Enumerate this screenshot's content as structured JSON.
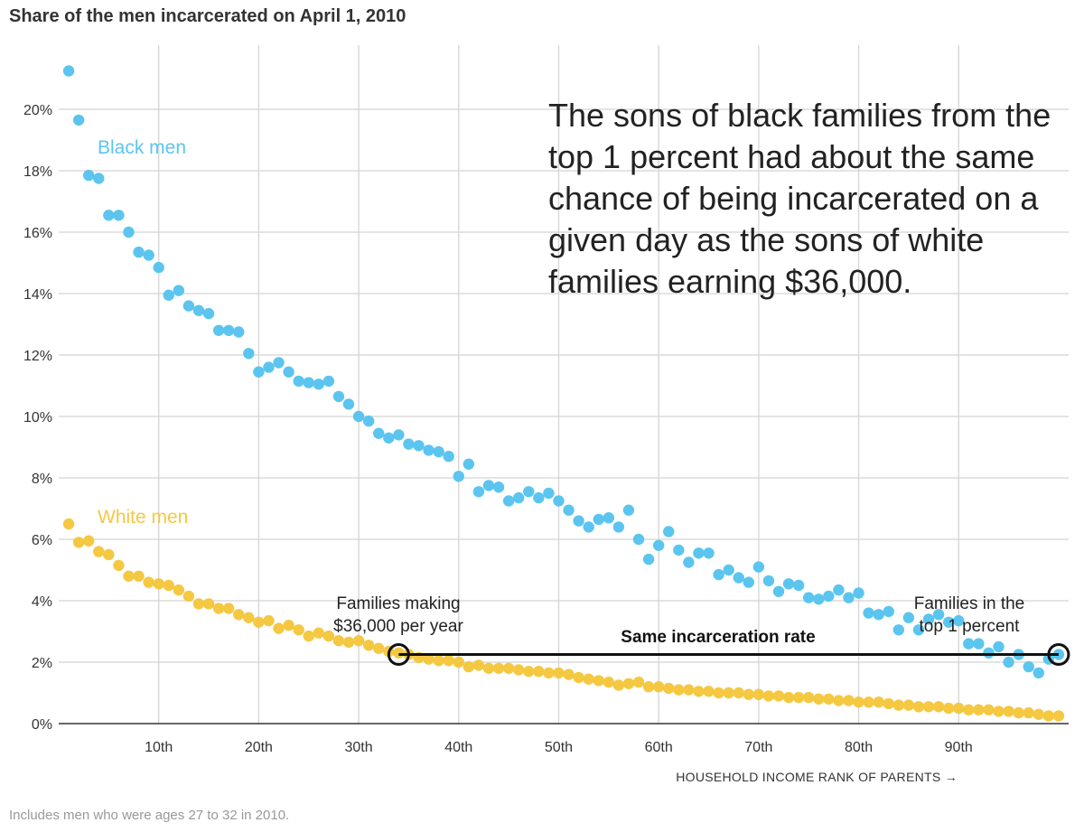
{
  "chart_data": {
    "type": "scatter",
    "title": "Share of the men incarcerated on April 1, 2010",
    "xlabel": "HOUSEHOLD INCOME RANK OF PARENTS →",
    "ylabel": "",
    "xlim": [
      0,
      101
    ],
    "ylim": [
      0,
      21
    ],
    "x_ticks": [
      10,
      20,
      30,
      40,
      50,
      60,
      70,
      80,
      90
    ],
    "x_tick_labels": [
      "10th",
      "20th",
      "30th",
      "40th",
      "50th",
      "60th",
      "70th",
      "80th",
      "90th"
    ],
    "y_ticks": [
      0,
      2,
      4,
      6,
      8,
      10,
      12,
      14,
      16,
      18,
      20
    ],
    "y_tick_labels": [
      "0%",
      "2%",
      "4%",
      "6%",
      "8%",
      "10%",
      "12%",
      "14%",
      "16%",
      "18%",
      "20%"
    ],
    "grid": true,
    "series": [
      {
        "name": "Black men",
        "color": "#5bc5ef",
        "x": [
          1,
          2,
          3,
          4,
          5,
          6,
          7,
          8,
          9,
          10,
          11,
          12,
          13,
          14,
          15,
          16,
          17,
          18,
          19,
          20,
          21,
          22,
          23,
          24,
          25,
          26,
          27,
          28,
          29,
          30,
          31,
          32,
          33,
          34,
          35,
          36,
          37,
          38,
          39,
          40,
          41,
          42,
          43,
          44,
          45,
          46,
          47,
          48,
          49,
          50,
          51,
          52,
          53,
          54,
          55,
          56,
          57,
          58,
          59,
          60,
          61,
          62,
          63,
          64,
          65,
          66,
          67,
          68,
          69,
          70,
          71,
          72,
          73,
          74,
          75,
          76,
          77,
          78,
          79,
          80,
          81,
          82,
          83,
          84,
          85,
          86,
          87,
          88,
          89,
          90,
          91,
          92,
          93,
          94,
          95,
          96,
          97,
          98,
          99,
          100
        ],
        "values": [
          21.25,
          19.65,
          17.85,
          17.75,
          16.55,
          16.55,
          16.0,
          15.35,
          15.25,
          14.85,
          13.95,
          14.1,
          13.6,
          13.45,
          13.35,
          12.8,
          12.8,
          12.75,
          12.05,
          11.45,
          11.6,
          11.75,
          11.45,
          11.15,
          11.1,
          11.05,
          11.15,
          10.65,
          10.4,
          10.0,
          9.85,
          9.45,
          9.3,
          9.4,
          9.1,
          9.05,
          8.9,
          8.85,
          8.7,
          8.05,
          8.45,
          7.55,
          7.75,
          7.7,
          7.25,
          7.35,
          7.55,
          7.35,
          7.5,
          7.25,
          6.95,
          6.6,
          6.4,
          6.65,
          6.7,
          6.4,
          6.95,
          6.0,
          5.35,
          5.8,
          6.25,
          5.65,
          5.25,
          5.55,
          5.55,
          4.85,
          5.0,
          4.75,
          4.6,
          5.1,
          4.65,
          4.3,
          4.55,
          4.5,
          4.1,
          4.05,
          4.15,
          4.35,
          4.1,
          4.25,
          3.6,
          3.55,
          3.65,
          3.05,
          3.45,
          3.05,
          3.4,
          3.55,
          3.3,
          3.35,
          2.6,
          2.6,
          2.3,
          2.5,
          2.0,
          2.25,
          1.85,
          1.65,
          2.1,
          2.25
        ]
      },
      {
        "name": "White men",
        "color": "#f5c842",
        "x": [
          1,
          2,
          3,
          4,
          5,
          6,
          7,
          8,
          9,
          10,
          11,
          12,
          13,
          14,
          15,
          16,
          17,
          18,
          19,
          20,
          21,
          22,
          23,
          24,
          25,
          26,
          27,
          28,
          29,
          30,
          31,
          32,
          33,
          34,
          35,
          36,
          37,
          38,
          39,
          40,
          41,
          42,
          43,
          44,
          45,
          46,
          47,
          48,
          49,
          50,
          51,
          52,
          53,
          54,
          55,
          56,
          57,
          58,
          59,
          60,
          61,
          62,
          63,
          64,
          65,
          66,
          67,
          68,
          69,
          70,
          71,
          72,
          73,
          74,
          75,
          76,
          77,
          78,
          79,
          80,
          81,
          82,
          83,
          84,
          85,
          86,
          87,
          88,
          89,
          90,
          91,
          92,
          93,
          94,
          95,
          96,
          97,
          98,
          99,
          100
        ],
        "values": [
          6.5,
          5.9,
          5.95,
          5.6,
          5.5,
          5.15,
          4.8,
          4.8,
          4.6,
          4.55,
          4.5,
          4.35,
          4.15,
          3.9,
          3.9,
          3.75,
          3.75,
          3.55,
          3.45,
          3.3,
          3.35,
          3.1,
          3.2,
          3.05,
          2.85,
          2.95,
          2.85,
          2.7,
          2.65,
          2.7,
          2.55,
          2.45,
          2.35,
          2.3,
          2.25,
          2.15,
          2.1,
          2.05,
          2.05,
          2.0,
          1.85,
          1.9,
          1.8,
          1.8,
          1.8,
          1.75,
          1.7,
          1.7,
          1.65,
          1.65,
          1.6,
          1.5,
          1.45,
          1.4,
          1.35,
          1.25,
          1.3,
          1.35,
          1.2,
          1.2,
          1.15,
          1.1,
          1.1,
          1.05,
          1.05,
          1.0,
          1.0,
          1.0,
          0.95,
          0.95,
          0.9,
          0.9,
          0.85,
          0.85,
          0.85,
          0.8,
          0.8,
          0.75,
          0.75,
          0.7,
          0.7,
          0.7,
          0.65,
          0.6,
          0.6,
          0.55,
          0.55,
          0.55,
          0.5,
          0.5,
          0.45,
          0.45,
          0.45,
          0.4,
          0.4,
          0.35,
          0.35,
          0.3,
          0.25,
          0.25
        ]
      }
    ],
    "series_labels": [
      "Black men",
      "White men"
    ],
    "annotations": {
      "main_text": [
        "The sons of black families from the",
        "top 1 percent had about the same",
        "chance of being incarcerated on a",
        "given day as the sons of white",
        "families earning $36,000."
      ],
      "left_callout": [
        "Families making",
        "$36,000 per year"
      ],
      "right_callout": [
        "Families in the",
        "top 1 percent"
      ],
      "line_label": "Same incarceration rate",
      "line_y": 2.25,
      "line_x_start": 34,
      "line_x_end": 100
    },
    "note": "Includes men who were ages 27 to 32 in 2010."
  }
}
